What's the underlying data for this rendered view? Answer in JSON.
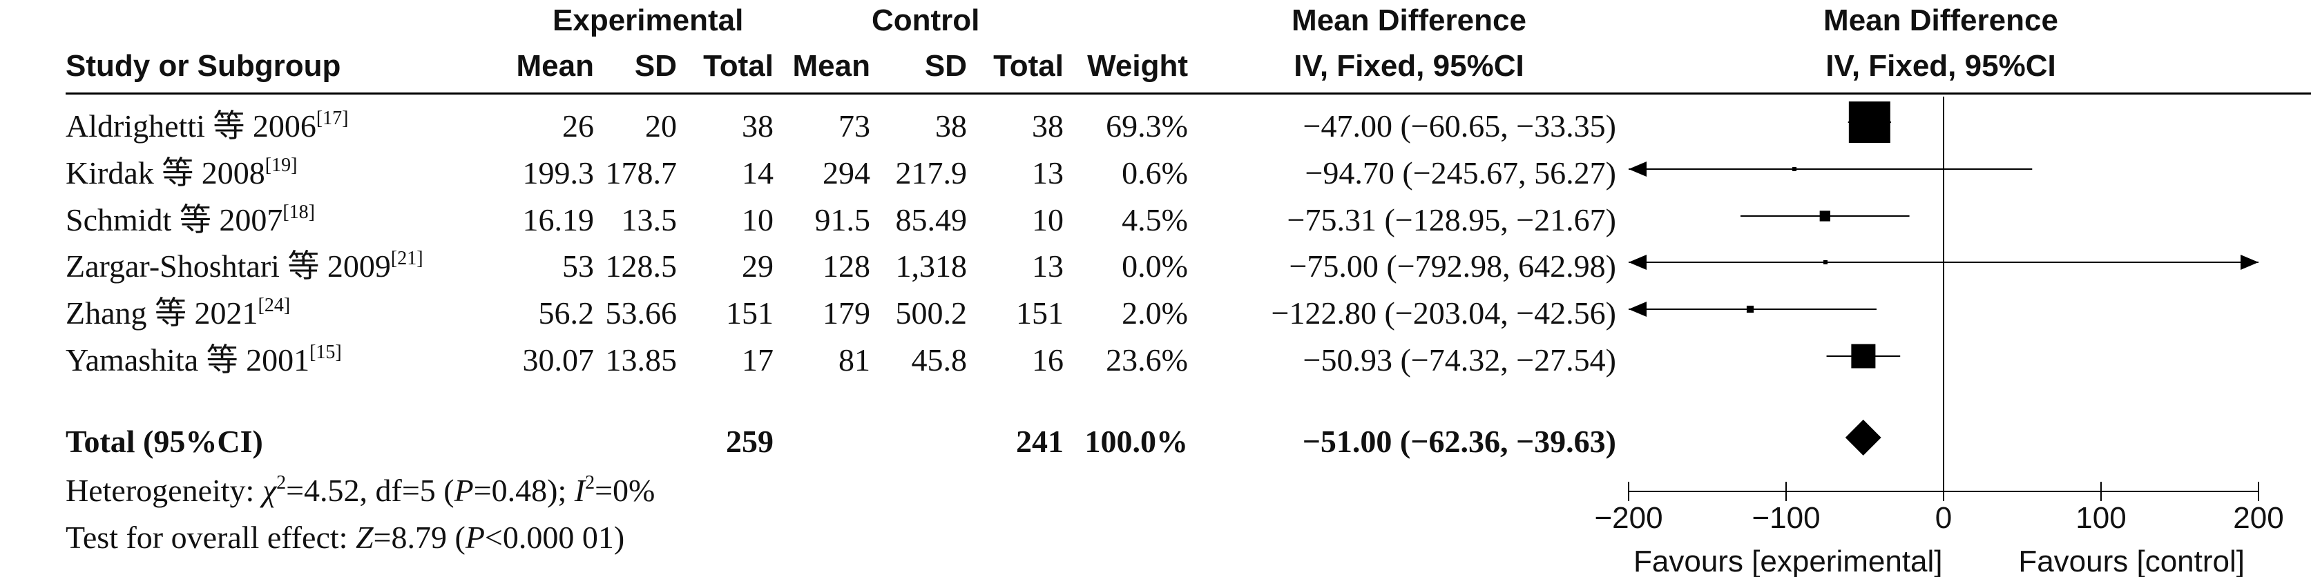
{
  "headers": {
    "study": "Study or Subgroup",
    "experimental": "Experimental",
    "control": "Control",
    "mean": "Mean",
    "sd": "SD",
    "total": "Total",
    "weight": "Weight",
    "md_title": "Mean Difference",
    "md_sub": "IV, Fixed, 95%CI",
    "plot_title": "Mean Difference",
    "plot_sub": "IV, Fixed, 95%CI"
  },
  "studies": [
    {
      "name": "Aldrighetti 等 2006",
      "ref": "[17]",
      "e_mean": "26",
      "e_sd": "20",
      "e_total": "38",
      "c_mean": "73",
      "c_sd": "38",
      "c_total": "38",
      "weight": "69.3%",
      "ci": "−47.00 (−60.65, −33.35)"
    },
    {
      "name": "Kirdak 等 2008",
      "ref": "[19]",
      "e_mean": "199.3",
      "e_sd": "178.7",
      "e_total": "14",
      "c_mean": "294",
      "c_sd": "217.9",
      "c_total": "13",
      "weight": "0.6%",
      "ci": "−94.70 (−245.67, 56.27)"
    },
    {
      "name": "Schmidt 等 2007",
      "ref": "[18]",
      "e_mean": "16.19",
      "e_sd": "13.5",
      "e_total": "10",
      "c_mean": "91.5",
      "c_sd": "85.49",
      "c_total": "10",
      "weight": "4.5%",
      "ci": "−75.31 (−128.95, −21.67)"
    },
    {
      "name": "Zargar-Shoshtari 等 2009",
      "ref": "[21]",
      "e_mean": "53",
      "e_sd": "128.5",
      "e_total": "29",
      "c_mean": "128",
      "c_sd": "1,318",
      "c_total": "13",
      "weight": "0.0%",
      "ci": "−75.00 (−792.98, 642.98)"
    },
    {
      "name": "Zhang 等 2021",
      "ref": "[24]",
      "e_mean": "56.2",
      "e_sd": "53.66",
      "e_total": "151",
      "c_mean": "179",
      "c_sd": "500.2",
      "c_total": "151",
      "weight": "2.0%",
      "ci": "−122.80 (−203.04, −42.56)"
    },
    {
      "name": "Yamashita 等 2001",
      "ref": "[15]",
      "e_mean": "30.07",
      "e_sd": "13.85",
      "e_total": "17",
      "c_mean": "81",
      "c_sd": "45.8",
      "c_total": "16",
      "weight": "23.6%",
      "ci": "−50.93 (−74.32, −27.54)"
    }
  ],
  "total": {
    "label": "Total (95%CI)",
    "e_total": "259",
    "c_total": "241",
    "weight": "100.0%",
    "ci": "−51.00 (−62.36, −39.63)"
  },
  "footer": {
    "het_prefix": "Heterogeneity: ",
    "het_chi": "χ",
    "het_sq": "2",
    "het_mid": "=4.52, df=5 (",
    "het_p": "P",
    "het_p_val": "=0.48); ",
    "het_i": "I",
    "het_i_sq": "2",
    "het_i_val": "=0%",
    "oe_prefix": "Test for overall effect: ",
    "oe_z": "Z",
    "oe_z_val": "=8.79 (",
    "oe_p": "P",
    "oe_p_val": "<0.000 01)"
  },
  "chart_data": {
    "type": "forest",
    "title": "Mean Difference",
    "subtitle": "IV, Fixed, 95%CI",
    "xlim": [
      -200,
      200
    ],
    "ticks": [
      -200,
      -100,
      0,
      100,
      200
    ],
    "tick_labels": [
      "−200",
      "−100",
      "0",
      "100",
      "200"
    ],
    "xlabel_left": "Favours [experimental]",
    "xlabel_right": "Favours [control]",
    "studies": [
      {
        "name": "Aldrighetti 等 2006",
        "md": -47.0,
        "lo": -60.65,
        "hi": -33.35,
        "weight": 69.3
      },
      {
        "name": "Kirdak 等 2008",
        "md": -94.7,
        "lo": -245.67,
        "hi": 56.27,
        "weight": 0.6
      },
      {
        "name": "Schmidt 等 2007",
        "md": -75.31,
        "lo": -128.95,
        "hi": -21.67,
        "weight": 4.5
      },
      {
        "name": "Zargar-Shoshtari 等 2009",
        "md": -75.0,
        "lo": -792.98,
        "hi": 642.98,
        "weight": 0.0
      },
      {
        "name": "Zhang 等 2021",
        "md": -122.8,
        "lo": -203.04,
        "hi": -42.56,
        "weight": 2.0
      },
      {
        "name": "Yamashita 等 2001",
        "md": -50.93,
        "lo": -74.32,
        "hi": -27.54,
        "weight": 23.6
      }
    ],
    "pooled": {
      "md": -51.0,
      "lo": -62.36,
      "hi": -39.63
    }
  }
}
